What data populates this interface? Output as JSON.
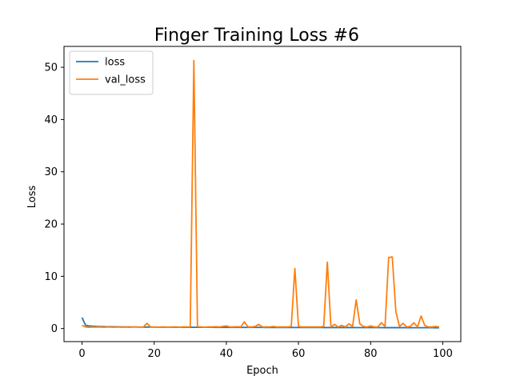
{
  "chart_data": {
    "type": "line",
    "title": "Finger Training Loss #6",
    "xlabel": "Epoch",
    "ylabel": "Loss",
    "xlim": [
      -5,
      105
    ],
    "ylim": [
      -2.5,
      54
    ],
    "xticks": [
      0,
      20,
      40,
      60,
      80,
      100
    ],
    "yticks": [
      0,
      10,
      20,
      30,
      40,
      50
    ],
    "grid": false,
    "legend_position": "upper-left",
    "series": [
      {
        "name": "loss",
        "color": "#1f77b4",
        "x": [
          0,
          1,
          2,
          3,
          4,
          5,
          6,
          7,
          8,
          9,
          10,
          11,
          12,
          13,
          14,
          15,
          16,
          17,
          18,
          19,
          20,
          21,
          22,
          23,
          24,
          25,
          26,
          27,
          28,
          29,
          30,
          31,
          32,
          33,
          34,
          35,
          36,
          37,
          38,
          39,
          40,
          41,
          42,
          43,
          44,
          45,
          46,
          47,
          48,
          49,
          50,
          51,
          52,
          53,
          54,
          55,
          56,
          57,
          58,
          59,
          60,
          61,
          62,
          63,
          64,
          65,
          66,
          67,
          68,
          69,
          70,
          71,
          72,
          73,
          74,
          75,
          76,
          77,
          78,
          79,
          80,
          81,
          82,
          83,
          84,
          85,
          86,
          87,
          88,
          89,
          90,
          91,
          92,
          93,
          94,
          95,
          96,
          97,
          98,
          99
        ],
        "values": [
          2.1,
          0.6,
          0.5,
          0.45,
          0.4,
          0.38,
          0.36,
          0.35,
          0.34,
          0.33,
          0.32,
          0.31,
          0.3,
          0.3,
          0.29,
          0.29,
          0.28,
          0.28,
          0.28,
          0.27,
          0.27,
          0.27,
          0.26,
          0.26,
          0.26,
          0.26,
          0.25,
          0.25,
          0.25,
          0.25,
          0.25,
          0.24,
          0.24,
          0.24,
          0.24,
          0.24,
          0.24,
          0.23,
          0.23,
          0.23,
          0.23,
          0.23,
          0.23,
          0.23,
          0.22,
          0.22,
          0.22,
          0.22,
          0.22,
          0.22,
          0.22,
          0.21,
          0.21,
          0.21,
          0.21,
          0.21,
          0.21,
          0.21,
          0.21,
          0.2,
          0.2,
          0.2,
          0.2,
          0.2,
          0.2,
          0.2,
          0.2,
          0.19,
          0.19,
          0.19,
          0.19,
          0.19,
          0.19,
          0.19,
          0.19,
          0.19,
          0.18,
          0.18,
          0.18,
          0.18,
          0.18,
          0.18,
          0.18,
          0.18,
          0.17,
          0.17,
          0.17,
          0.17,
          0.17,
          0.17,
          0.17,
          0.16,
          0.16,
          0.16,
          0.16,
          0.16,
          0.16,
          0.16,
          0.15,
          0.15
        ]
      },
      {
        "name": "val_loss",
        "color": "#ff7f0e",
        "x": [
          0,
          1,
          2,
          3,
          4,
          5,
          6,
          7,
          8,
          9,
          10,
          11,
          12,
          13,
          14,
          15,
          16,
          17,
          18,
          19,
          20,
          21,
          22,
          23,
          24,
          25,
          26,
          27,
          28,
          29,
          30,
          31,
          32,
          33,
          34,
          35,
          36,
          37,
          38,
          39,
          40,
          41,
          42,
          43,
          44,
          45,
          46,
          47,
          48,
          49,
          50,
          51,
          52,
          53,
          54,
          55,
          56,
          57,
          58,
          59,
          60,
          61,
          62,
          63,
          64,
          65,
          66,
          67,
          68,
          69,
          70,
          71,
          72,
          73,
          74,
          75,
          76,
          77,
          78,
          79,
          80,
          81,
          82,
          83,
          84,
          85,
          86,
          87,
          88,
          89,
          90,
          91,
          92,
          93,
          94,
          95,
          96,
          97,
          98,
          99
        ],
        "values": [
          0.6,
          0.3,
          0.25,
          0.3,
          0.28,
          0.3,
          0.25,
          0.3,
          0.28,
          0.25,
          0.3,
          0.25,
          0.3,
          0.25,
          0.3,
          0.3,
          0.28,
          0.3,
          1.0,
          0.3,
          0.3,
          0.25,
          0.3,
          0.3,
          0.25,
          0.3,
          0.3,
          0.25,
          0.3,
          0.3,
          0.3,
          51.3,
          0.35,
          0.3,
          0.25,
          0.3,
          0.3,
          0.35,
          0.3,
          0.4,
          0.5,
          0.3,
          0.3,
          0.35,
          0.3,
          1.3,
          0.3,
          0.3,
          0.4,
          0.8,
          0.3,
          0.3,
          0.3,
          0.4,
          0.3,
          0.3,
          0.3,
          0.3,
          0.4,
          11.5,
          0.4,
          0.3,
          0.3,
          0.3,
          0.3,
          0.3,
          0.3,
          0.4,
          12.7,
          0.3,
          0.8,
          0.3,
          0.6,
          0.3,
          0.9,
          0.4,
          5.5,
          0.9,
          0.4,
          0.3,
          0.5,
          0.3,
          0.3,
          1.1,
          0.4,
          13.6,
          13.7,
          3.2,
          0.4,
          1.0,
          0.3,
          0.4,
          1.1,
          0.3,
          2.4,
          0.6,
          0.3,
          0.3,
          0.4,
          0.3
        ]
      }
    ]
  }
}
